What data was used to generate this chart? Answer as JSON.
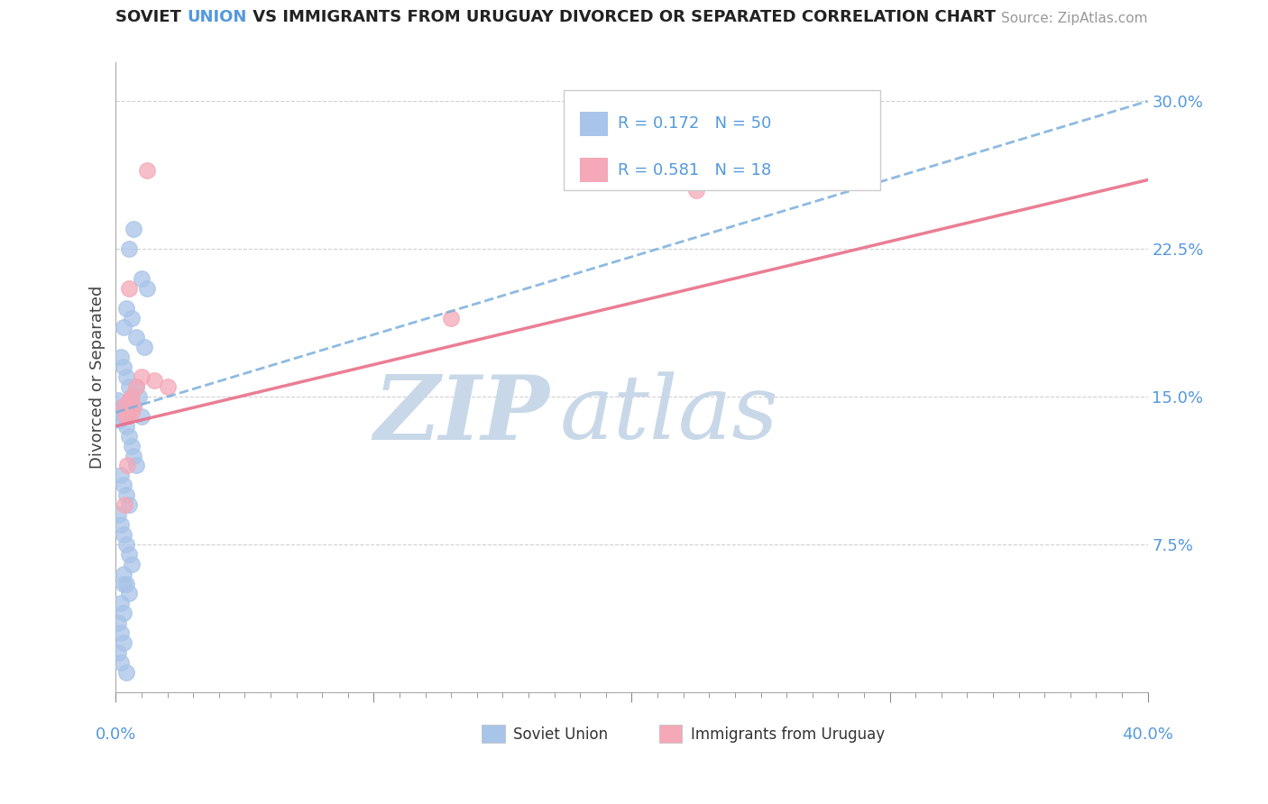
{
  "title": "SOVIET UNION VS IMMIGRANTS FROM URUGUAY DIVORCED OR SEPARATED CORRELATION CHART",
  "source": "Source: ZipAtlas.com",
  "ylabel": "Divorced or Separated",
  "xlim": [
    0.0,
    40.0
  ],
  "ylim": [
    0.0,
    32.0
  ],
  "yticks": [
    0.0,
    7.5,
    15.0,
    22.5,
    30.0
  ],
  "ytick_labels": [
    "",
    "7.5%",
    "15.0%",
    "22.5%",
    "30.0%"
  ],
  "xtick_labels_show": [
    "0.0%",
    "40.0%"
  ],
  "soviet_R": 0.172,
  "soviet_N": 50,
  "uruguay_R": 0.581,
  "uruguay_N": 18,
  "soviet_color": "#a8c4e8",
  "uruguay_color": "#f4a8b8",
  "soviet_line_color": "#7aaedc",
  "uruguay_line_color": "#e8708a",
  "title_color": "#222222",
  "title_highlight": "UNION",
  "title_highlight_color": "#5599dd",
  "source_color": "#999999",
  "axis_label_color": "#5599dd",
  "ylabel_color": "#444444",
  "watermark_zip_color": "#c8d8e8",
  "watermark_atlas_color": "#c8d8e8",
  "legend_border_color": "#cccccc",
  "grid_color": "#cccccc",
  "soviet_scatter_x": [
    0.5,
    0.7,
    1.0,
    1.2,
    0.3,
    0.4,
    0.6,
    0.8,
    1.1,
    0.2,
    0.3,
    0.4,
    0.5,
    0.6,
    0.7,
    0.8,
    0.9,
    1.0,
    0.1,
    0.2,
    0.3,
    0.4,
    0.5,
    0.6,
    0.7,
    0.8,
    0.2,
    0.3,
    0.4,
    0.5,
    0.1,
    0.2,
    0.3,
    0.4,
    0.5,
    0.6,
    0.3,
    0.4,
    0.5,
    0.2,
    0.3,
    0.1,
    0.2,
    0.3,
    0.1,
    0.2,
    0.4,
    0.3,
    0.15,
    0.25
  ],
  "soviet_scatter_y": [
    22.5,
    23.5,
    21.0,
    20.5,
    18.5,
    19.5,
    19.0,
    18.0,
    17.5,
    17.0,
    16.5,
    16.0,
    15.5,
    15.0,
    14.5,
    15.5,
    15.0,
    14.0,
    14.8,
    14.2,
    14.0,
    13.5,
    13.0,
    12.5,
    12.0,
    11.5,
    11.0,
    10.5,
    10.0,
    9.5,
    9.0,
    8.5,
    8.0,
    7.5,
    7.0,
    6.5,
    6.0,
    5.5,
    5.0,
    4.5,
    4.0,
    3.5,
    3.0,
    2.5,
    2.0,
    1.5,
    1.0,
    5.5,
    13.8,
    14.5
  ],
  "uruguay_scatter_x": [
    0.5,
    1.0,
    2.0,
    0.7,
    0.4,
    0.6,
    0.8,
    0.5,
    1.5,
    0.3,
    0.6,
    0.4,
    1.2,
    13.0,
    0.35,
    0.45,
    22.5,
    0.55
  ],
  "uruguay_scatter_y": [
    20.5,
    16.0,
    15.5,
    14.5,
    14.0,
    15.0,
    15.5,
    14.8,
    15.8,
    14.5,
    14.2,
    14.0,
    26.5,
    19.0,
    9.5,
    11.5,
    25.5,
    14.3
  ],
  "soviet_trend_y_at_0": 14.2,
  "soviet_trend_y_at_40": 30.0,
  "uruguay_trend_y_at_0": 13.5,
  "uruguay_trend_y_at_40": 26.0
}
